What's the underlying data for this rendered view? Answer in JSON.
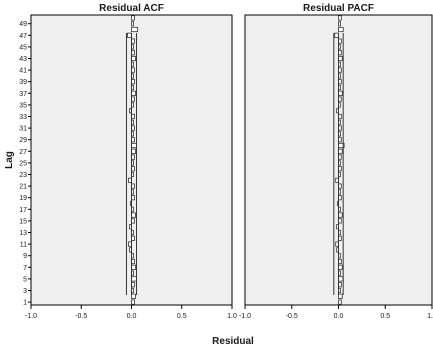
{
  "chart_data": [
    {
      "type": "bar",
      "orientation": "horizontal",
      "title": "Residual ACF",
      "xlabel": "Residual",
      "ylabel": "Lag",
      "xlim": [
        -1.0,
        1.0
      ],
      "x_ticks": [
        "-1.0",
        "-0.5",
        "0.0",
        "0.5",
        "1.0"
      ],
      "lags": [
        1,
        2,
        3,
        4,
        5,
        6,
        7,
        8,
        9,
        10,
        11,
        12,
        13,
        14,
        15,
        16,
        17,
        18,
        19,
        20,
        21,
        22,
        23,
        24,
        25,
        26,
        27,
        28,
        29,
        30,
        31,
        32,
        33,
        34,
        35,
        36,
        37,
        38,
        39,
        40,
        41,
        42,
        43,
        44,
        45,
        46,
        47,
        48,
        49,
        50
      ],
      "lag_tick_labels": [
        "1",
        "3",
        "5",
        "7",
        "9",
        "11",
        "13",
        "15",
        "17",
        "19",
        "21",
        "23",
        "25",
        "27",
        "29",
        "31",
        "33",
        "35",
        "37",
        "39",
        "41",
        "43",
        "45",
        "47",
        "49"
      ],
      "values": [
        0.03,
        0.04,
        0.02,
        0.03,
        0.05,
        0.02,
        0.04,
        0.03,
        0.02,
        -0.02,
        -0.03,
        0.03,
        0.02,
        -0.02,
        0.03,
        0.04,
        0.02,
        -0.01,
        0.03,
        0.02,
        0.03,
        -0.03,
        0.02,
        0.03,
        0.02,
        0.03,
        0.04,
        0.05,
        0.03,
        0.02,
        0.03,
        0.02,
        0.03,
        -0.02,
        0.02,
        0.03,
        0.04,
        0.02,
        0.03,
        0.02,
        0.03,
        0.02,
        0.04,
        0.03,
        0.02,
        0.03,
        -0.04,
        0.06,
        0.02,
        0.03
      ],
      "confidence_limits": [
        -0.05,
        0.05
      ],
      "background_color": "#efefef",
      "bar_fill": "#ffffff",
      "line_color": "#333333"
    },
    {
      "type": "bar",
      "orientation": "horizontal",
      "title": "Residual PACF",
      "xlim": [
        -1.0,
        1.0
      ],
      "x_ticks": [
        "-1.0",
        "-0.5",
        "0.0",
        "0.5",
        "1.0"
      ],
      "lags": [
        1,
        2,
        3,
        4,
        5,
        6,
        7,
        8,
        9,
        10,
        11,
        12,
        13,
        14,
        15,
        16,
        17,
        18,
        19,
        20,
        21,
        22,
        23,
        24,
        25,
        26,
        27,
        28,
        29,
        30,
        31,
        32,
        33,
        34,
        35,
        36,
        37,
        38,
        39,
        40,
        41,
        42,
        43,
        44,
        45,
        46,
        47,
        48,
        49,
        50
      ],
      "values": [
        0.03,
        0.04,
        0.02,
        0.03,
        0.05,
        0.02,
        0.04,
        0.03,
        0.02,
        -0.02,
        -0.03,
        0.03,
        0.02,
        -0.02,
        0.03,
        0.04,
        0.02,
        -0.01,
        0.03,
        0.02,
        0.03,
        -0.03,
        0.02,
        0.03,
        0.02,
        0.03,
        0.04,
        0.06,
        0.03,
        0.02,
        0.03,
        0.02,
        0.03,
        -0.02,
        0.02,
        0.03,
        0.04,
        0.02,
        0.03,
        0.02,
        0.03,
        0.02,
        0.04,
        0.03,
        0.02,
        0.03,
        -0.04,
        0.05,
        0.02,
        0.03
      ],
      "confidence_limits": [
        -0.05,
        0.05
      ],
      "background_color": "#efefef",
      "bar_fill": "#ffffff",
      "line_color": "#333333"
    }
  ]
}
